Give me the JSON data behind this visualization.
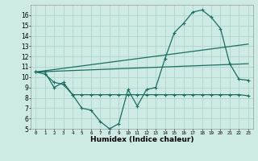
{
  "xlabel": "Humidex (Indice chaleur)",
  "background_color": "#ceeae4",
  "grid_color": "#aed4cc",
  "line_color": "#1a6e60",
  "xlim": [
    -0.5,
    23.5
  ],
  "ylim": [
    5,
    17
  ],
  "yticks": [
    5,
    6,
    7,
    8,
    9,
    10,
    11,
    12,
    13,
    14,
    15,
    16
  ],
  "xticks": [
    0,
    1,
    2,
    3,
    4,
    5,
    6,
    7,
    8,
    9,
    10,
    11,
    12,
    13,
    14,
    15,
    16,
    17,
    18,
    19,
    20,
    21,
    22,
    23
  ],
  "series1_x": [
    0,
    1,
    2,
    3,
    4,
    5,
    6,
    7,
    8,
    9,
    10,
    11,
    12,
    13,
    14,
    15,
    16,
    17,
    18,
    19,
    20,
    21,
    22,
    23
  ],
  "series1_y": [
    10.5,
    10.5,
    9.0,
    9.5,
    8.3,
    7.0,
    6.8,
    5.7,
    5.0,
    5.5,
    8.8,
    7.2,
    8.8,
    9.0,
    11.8,
    14.3,
    15.2,
    16.3,
    16.5,
    15.8,
    14.7,
    11.3,
    9.8,
    9.7
  ],
  "series2_x": [
    0,
    1,
    2,
    3,
    4,
    5,
    6,
    7,
    8,
    9,
    10,
    11,
    12,
    13,
    14,
    15,
    16,
    17,
    18,
    19,
    20,
    21,
    22,
    23
  ],
  "series2_y": [
    10.5,
    10.3,
    9.5,
    9.3,
    8.3,
    8.3,
    8.3,
    8.3,
    8.3,
    8.3,
    8.3,
    8.3,
    8.3,
    8.3,
    8.3,
    8.3,
    8.3,
    8.3,
    8.3,
    8.3,
    8.3,
    8.3,
    8.3,
    8.2
  ],
  "series3_x": [
    0,
    23
  ],
  "series3_y": [
    10.5,
    13.2
  ],
  "series4_x": [
    0,
    23
  ],
  "series4_y": [
    10.5,
    11.3
  ]
}
